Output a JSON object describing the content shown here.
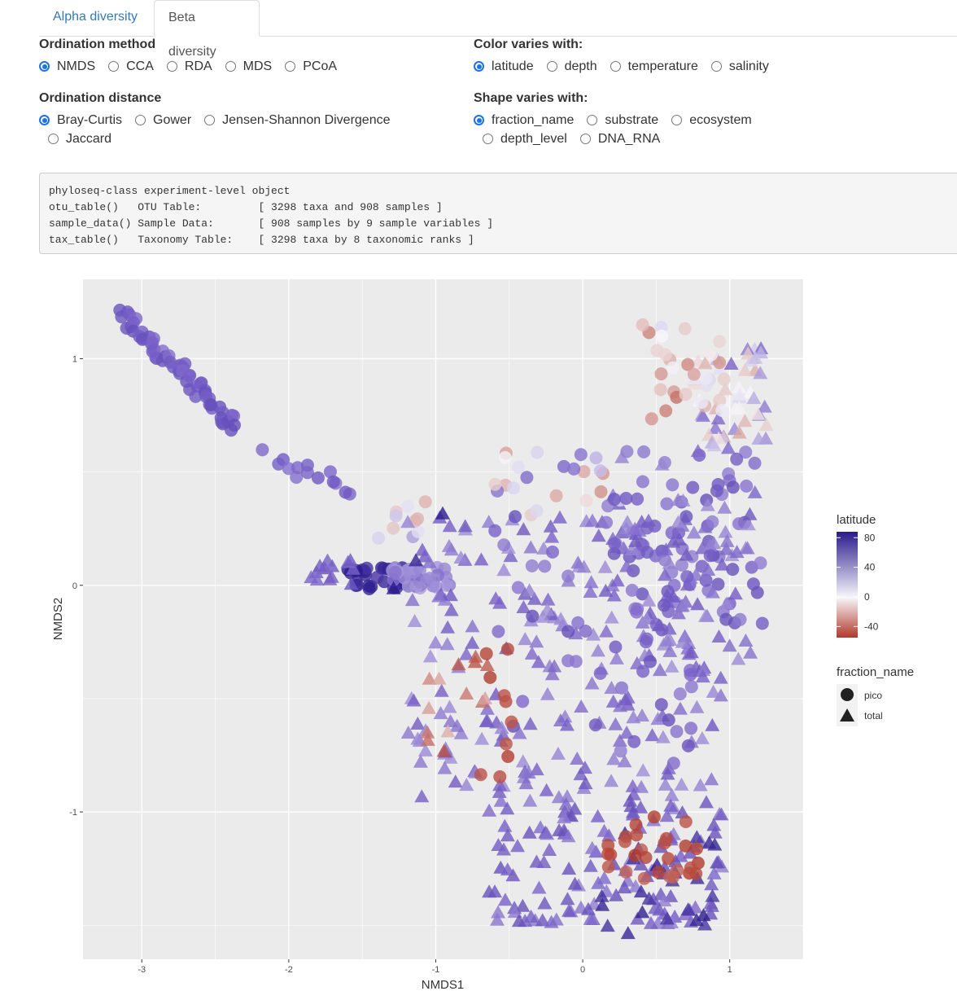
{
  "tabs": [
    {
      "label": "Alpha diversity",
      "active": false
    },
    {
      "label": "Beta diversity",
      "active": true
    }
  ],
  "ordination_method": {
    "label": "Ordination method",
    "options": [
      "NMDS",
      "CCA",
      "RDA",
      "MDS",
      "PCoA"
    ],
    "selected": "NMDS"
  },
  "ordination_distance": {
    "label": "Ordination distance",
    "options": [
      "Bray-Curtis",
      "Gower",
      "Jensen-Shannon Divergence",
      "Jaccard"
    ],
    "selected": "Bray-Curtis"
  },
  "color_varies": {
    "label": "Color varies with:",
    "options": [
      "latitude",
      "depth",
      "temperature",
      "salinity"
    ],
    "selected": "latitude"
  },
  "shape_varies": {
    "label": "Shape varies with:",
    "options": [
      "fraction_name",
      "substrate",
      "ecosystem",
      "depth_level",
      "DNA_RNA"
    ],
    "selected": "fraction_name"
  },
  "console": {
    "lines": [
      "phyloseq-class experiment-level object",
      "otu_table()   OTU Table:         [ 3298 taxa and 908 samples ]",
      "sample_data() Sample Data:       [ 908 samples by 9 sample variables ]",
      "tax_table()   Taxonomy Table:    [ 3298 taxa by 8 taxonomic ranks ]"
    ]
  },
  "colors": {
    "panel_bg": "#ebebeb",
    "grid": "#ffffff",
    "lat_high": "#2a1a8c",
    "lat_mid": "#f7f7fb",
    "lat_low": "#b2382a",
    "radio_accent": "#1a73e8",
    "tab_link": "#337ab7"
  },
  "chart_data": {
    "type": "scatter",
    "xlabel": "NMDS1",
    "ylabel": "NMDS2",
    "xlim": [
      -3.4,
      1.5
    ],
    "ylim": [
      -1.65,
      1.35
    ],
    "xticks": [
      -3,
      -2,
      -1,
      0,
      1
    ],
    "yticks": [
      -1,
      0,
      1
    ],
    "grid": true,
    "legend_position": "right",
    "color_legend": {
      "title": "latitude",
      "breaks": [
        80,
        40,
        0,
        -40
      ],
      "range": [
        -55,
        88
      ]
    },
    "shape_legend": {
      "title": "fraction_name",
      "entries": [
        {
          "label": "pico",
          "shape": "circle"
        },
        {
          "label": "total",
          "shape": "triangle"
        }
      ]
    },
    "clusters": [
      {
        "name": "diagonal-arm",
        "shape": "circle",
        "n": 60,
        "x": [
          -3.15,
          -2.35
        ],
        "y": [
          1.2,
          0.7
        ],
        "spread": 0.02,
        "lat": [
          40,
          55
        ],
        "kind": "line"
      },
      {
        "name": "arm-tail",
        "shape": "circle",
        "n": 14,
        "x": [
          -2.15,
          -1.6
        ],
        "y": [
          0.57,
          0.45
        ],
        "spread": 0.03,
        "lat": [
          38,
          50
        ],
        "kind": "line"
      },
      {
        "name": "mid-band-dark",
        "shape": "circle",
        "n": 40,
        "x": [
          -1.6,
          -1.1
        ],
        "y": [
          0.08,
          -0.02
        ],
        "spread": 0.035,
        "lat": [
          70,
          88
        ],
        "kind": "box"
      },
      {
        "name": "mid-band-light",
        "shape": "circle",
        "n": 28,
        "x": [
          -1.3,
          -0.9
        ],
        "y": [
          0.08,
          -0.02
        ],
        "spread": 0.035,
        "lat": [
          25,
          40
        ],
        "kind": "box"
      },
      {
        "name": "mid-band-tri",
        "shape": "triangle",
        "n": 14,
        "x": [
          -1.85,
          -1.55
        ],
        "y": [
          0.14,
          0.0
        ],
        "spread": 0.03,
        "lat": [
          40,
          50
        ],
        "kind": "box"
      },
      {
        "name": "mid-upper",
        "shape": "circle",
        "n": 10,
        "x": [
          -1.4,
          -1.05
        ],
        "y": [
          0.4,
          0.2
        ],
        "spread": 0.04,
        "lat": [
          -20,
          40
        ],
        "kind": "box"
      },
      {
        "name": "right-column-top",
        "shape": "triangle",
        "n": 50,
        "x": [
          0.75,
          1.25
        ],
        "y": [
          1.05,
          0.6
        ],
        "spread": 0.04,
        "lat": [
          -35,
          45
        ],
        "kind": "box"
      },
      {
        "name": "right-column-top-c",
        "shape": "circle",
        "n": 30,
        "x": [
          0.4,
          1.0
        ],
        "y": [
          1.15,
          0.7
        ],
        "spread": 0.04,
        "lat": [
          -40,
          10
        ],
        "kind": "box"
      },
      {
        "name": "right-column",
        "shape": "circle",
        "n": 70,
        "x": [
          0.3,
          1.25
        ],
        "y": [
          0.6,
          -0.2
        ],
        "spread": 0.04,
        "lat": [
          35,
          55
        ],
        "kind": "box"
      },
      {
        "name": "right-column-tri",
        "shape": "triangle",
        "n": 60,
        "x": [
          0.15,
          1.2
        ],
        "y": [
          0.6,
          -0.4
        ],
        "spread": 0.04,
        "lat": [
          30,
          50
        ],
        "kind": "box"
      },
      {
        "name": "upper-mid",
        "shape": "circle",
        "n": 22,
        "x": [
          -0.6,
          0.3
        ],
        "y": [
          0.6,
          0.3
        ],
        "spread": 0.04,
        "lat": [
          -30,
          45
        ],
        "kind": "box"
      },
      {
        "name": "central-cloud",
        "shape": "triangle",
        "n": 220,
        "x": [
          -1.2,
          0.95
        ],
        "y": [
          0.3,
          -0.95
        ],
        "spread": 0.04,
        "lat": [
          30,
          50
        ],
        "kind": "box"
      },
      {
        "name": "central-cloud-c",
        "shape": "circle",
        "n": 50,
        "x": [
          -0.6,
          0.9
        ],
        "y": [
          0.4,
          -0.8
        ],
        "spread": 0.04,
        "lat": [
          35,
          55
        ],
        "kind": "box"
      },
      {
        "name": "red-wedge-tri",
        "shape": "triangle",
        "n": 14,
        "x": [
          -1.1,
          -0.6
        ],
        "y": [
          -0.3,
          -0.75
        ],
        "spread": 0.03,
        "lat": [
          -50,
          -20
        ],
        "kind": "box"
      },
      {
        "name": "red-wedge-c",
        "shape": "circle",
        "n": 10,
        "x": [
          -0.7,
          -0.45
        ],
        "y": [
          -0.25,
          -0.85
        ],
        "spread": 0.03,
        "lat": [
          -55,
          -45
        ],
        "kind": "box"
      },
      {
        "name": "bottom-basin",
        "shape": "triangle",
        "n": 130,
        "x": [
          -0.65,
          0.95
        ],
        "y": [
          -0.95,
          -1.5
        ],
        "spread": 0.04,
        "lat": [
          35,
          55
        ],
        "kind": "box"
      },
      {
        "name": "bottom-dark",
        "shape": "triangle",
        "n": 24,
        "x": [
          0.05,
          0.95
        ],
        "y": [
          -1.05,
          -1.55
        ],
        "spread": 0.03,
        "lat": [
          70,
          88
        ],
        "kind": "box"
      },
      {
        "name": "bottom-red",
        "shape": "circle",
        "n": 28,
        "x": [
          0.1,
          0.8
        ],
        "y": [
          -1.0,
          -1.3
        ],
        "spread": 0.03,
        "lat": [
          -55,
          -42
        ],
        "kind": "box"
      },
      {
        "name": "isolated-dark-tri",
        "shape": "triangle",
        "n": 3,
        "x": [
          -1.3,
          -0.9
        ],
        "y": [
          0.45,
          -0.2
        ],
        "spread": 0.02,
        "lat": [
          80,
          88
        ],
        "kind": "box"
      }
    ]
  }
}
